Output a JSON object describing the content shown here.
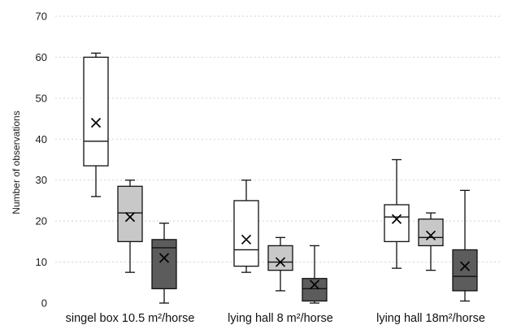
{
  "chart_data": {
    "type": "boxplot",
    "title": "",
    "xlabel": "",
    "ylabel": "Number of observations",
    "ylim": [
      0,
      70
    ],
    "yticks": [
      0,
      10,
      20,
      30,
      40,
      50,
      60,
      70
    ],
    "grid": true,
    "legend": "none",
    "group_colors": [
      "#ffffff",
      "#c8c8c8",
      "#5c5c5c"
    ],
    "groups": [
      {
        "label": "singel box 10.5 m²/horse",
        "boxes": [
          {
            "min": 26,
            "q1": 33.5,
            "median": 39.5,
            "q3": 60,
            "max": 61,
            "mean": 44
          },
          {
            "min": 7.5,
            "q1": 15,
            "median": 22,
            "q3": 28.5,
            "max": 30,
            "mean": 21
          },
          {
            "min": 0,
            "q1": 3.5,
            "median": 13.5,
            "q3": 15.5,
            "max": 19.5,
            "mean": 11
          }
        ]
      },
      {
        "label": "lying hall 8 m²/horse",
        "boxes": [
          {
            "min": 7.5,
            "q1": 9,
            "median": 13,
            "q3": 25,
            "max": 30,
            "mean": 15.5
          },
          {
            "min": 3,
            "q1": 8,
            "median": 10,
            "q3": 14,
            "max": 16,
            "mean": 10
          },
          {
            "min": 0,
            "q1": 0.5,
            "median": 3.5,
            "q3": 6,
            "max": 14,
            "mean": 4.5
          }
        ]
      },
      {
        "label": "lying hall 18m²/horse",
        "boxes": [
          {
            "min": 8.5,
            "q1": 15,
            "median": 21,
            "q3": 24,
            "max": 35,
            "mean": 20.5
          },
          {
            "min": 8,
            "q1": 14,
            "median": 16,
            "q3": 20.5,
            "max": 22,
            "mean": 16.5
          },
          {
            "min": 0.5,
            "q1": 3,
            "median": 6.5,
            "q3": 13,
            "max": 27.5,
            "mean": 9
          }
        ]
      }
    ]
  }
}
